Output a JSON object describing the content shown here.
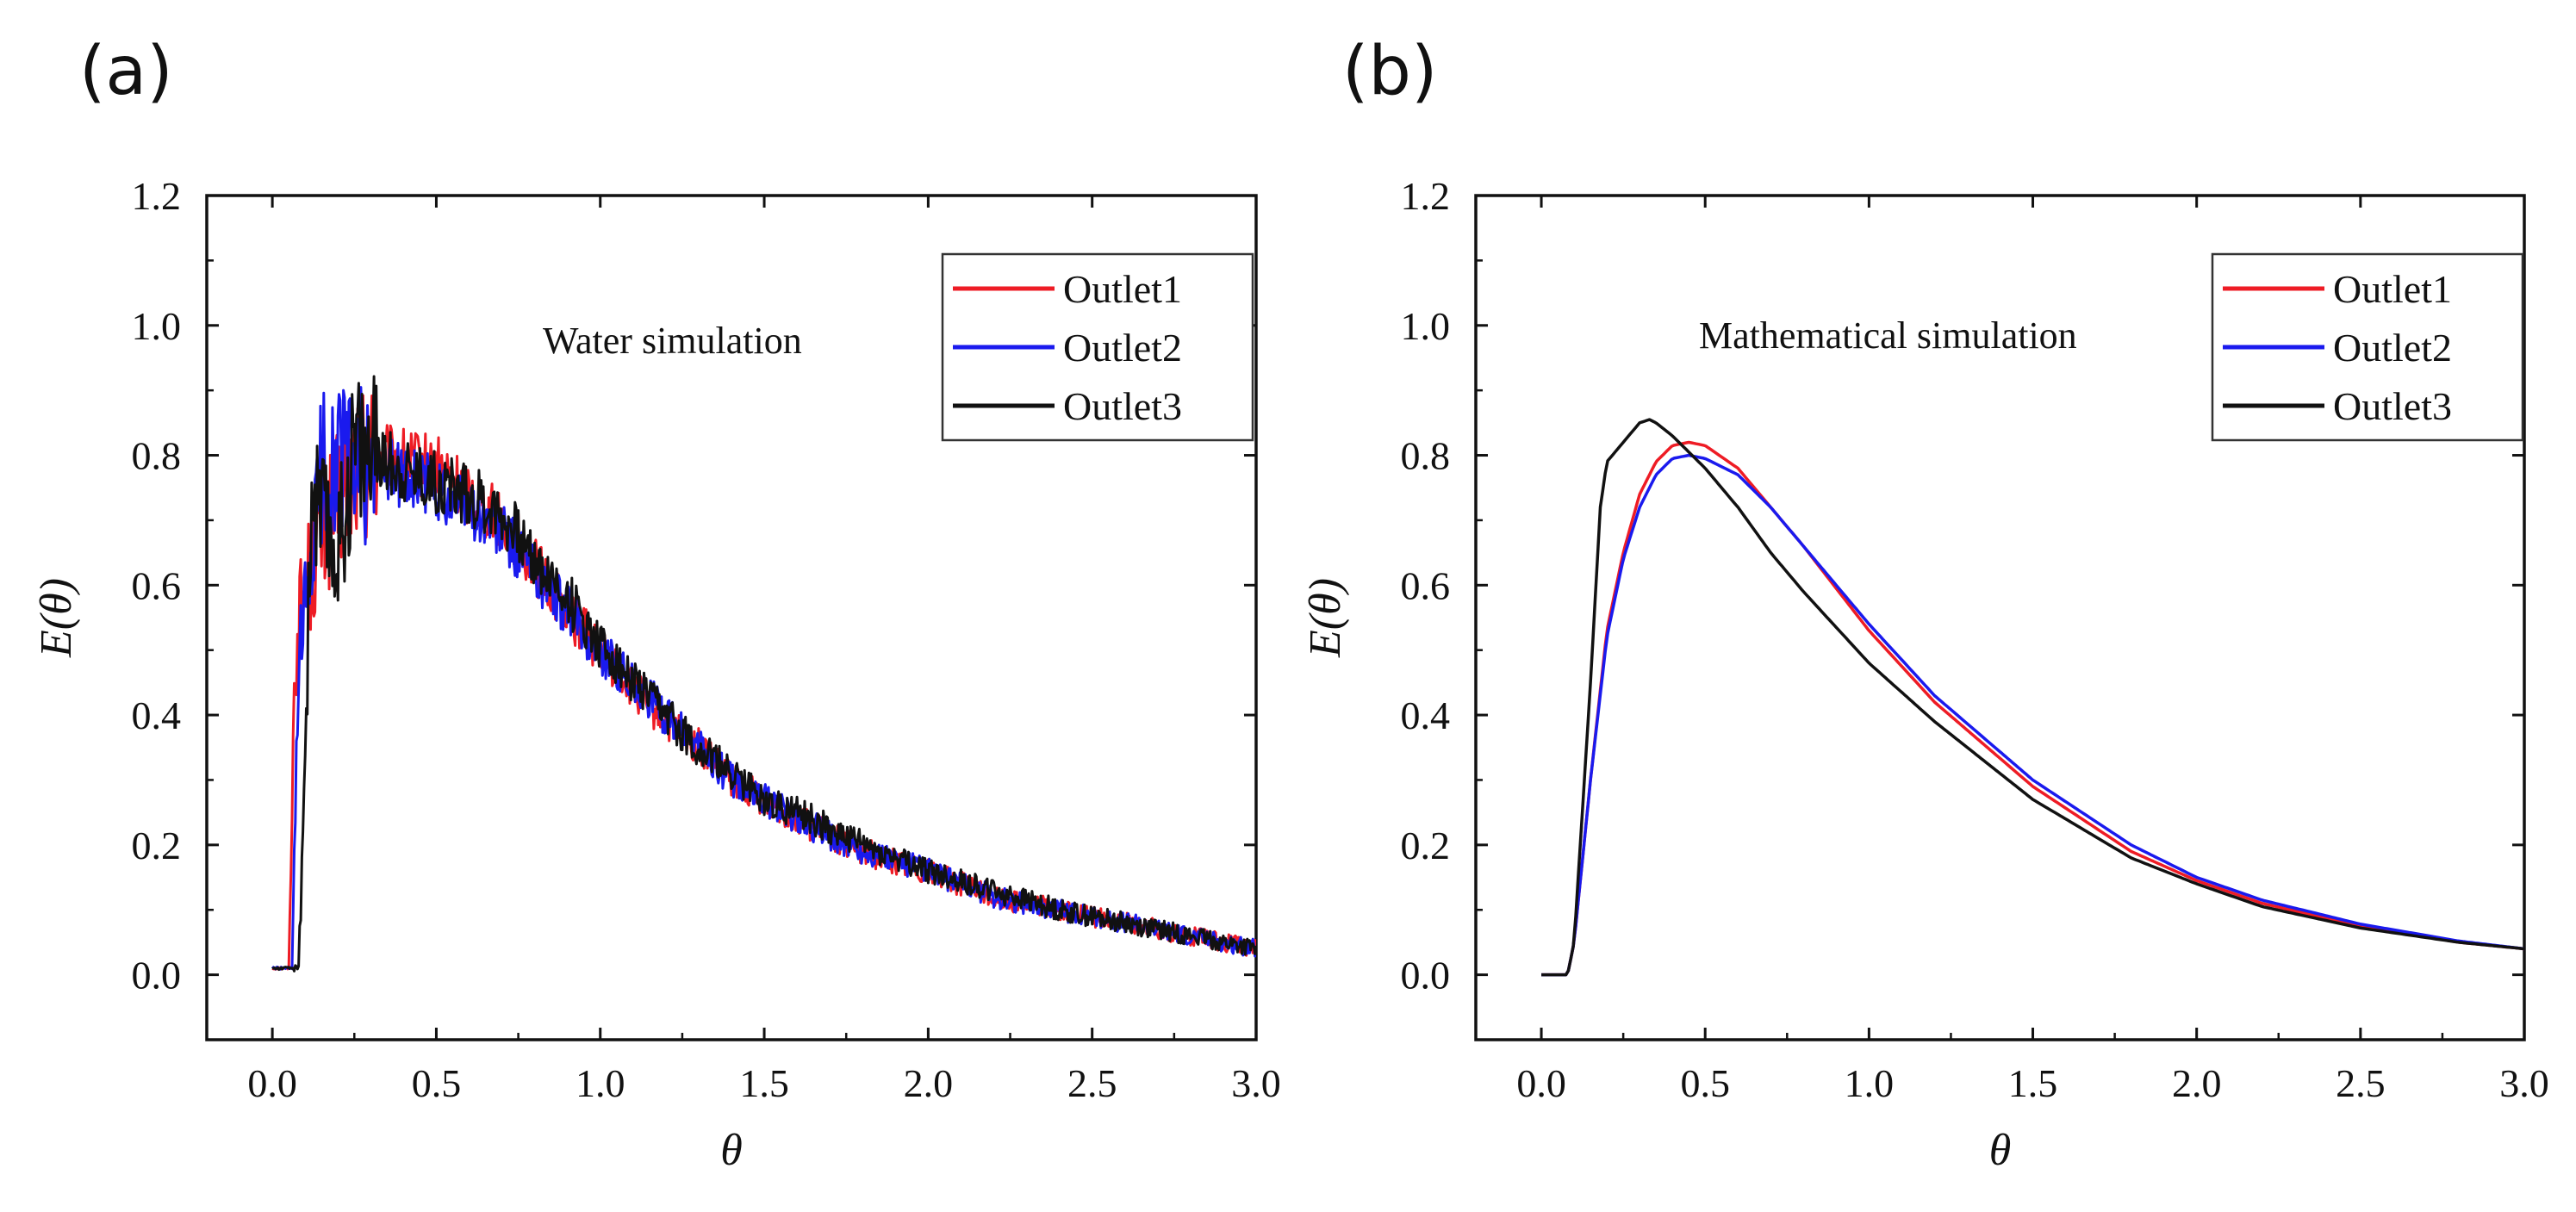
{
  "panel_labels": [
    "(a)",
    "(b)"
  ],
  "colors": {
    "Outlet1": "#ee1c25",
    "Outlet2": "#1a1aee",
    "Outlet3": "#111111",
    "axes": "#111111"
  },
  "chart_data": [
    {
      "type": "line",
      "panel": "(a)",
      "annotation": "Water simulation",
      "xlabel": "θ",
      "ylabel": "E(θ)",
      "xlim": [
        -0.2,
        3.0
      ],
      "ylim": [
        -0.1,
        1.2
      ],
      "xticks": [
        "0.0",
        "0.5",
        "1.0",
        "1.5",
        "2.0",
        "2.5",
        "3.0"
      ],
      "yticks": [
        "0.0",
        "0.2",
        "0.4",
        "0.6",
        "0.8",
        "1.0",
        "1.2"
      ],
      "legend": {
        "position": "top-right",
        "entries": [
          "Outlet1",
          "Outlet2",
          "Outlet3"
        ]
      },
      "noisy": true,
      "series": [
        {
          "name": "Outlet1",
          "x": [
            0.0,
            0.05,
            0.07,
            0.1,
            0.15,
            0.2,
            0.25,
            0.3,
            0.4,
            0.5,
            0.6,
            0.7,
            0.8,
            0.9,
            1.0,
            1.1,
            1.2,
            1.3,
            1.4,
            1.5,
            1.6,
            1.8,
            2.0,
            2.2,
            2.4,
            2.6,
            2.8,
            3.0
          ],
          "y": [
            0.01,
            0.01,
            0.5,
            0.6,
            0.68,
            0.72,
            0.78,
            0.8,
            0.79,
            0.78,
            0.74,
            0.7,
            0.63,
            0.56,
            0.5,
            0.44,
            0.39,
            0.35,
            0.3,
            0.27,
            0.24,
            0.19,
            0.16,
            0.12,
            0.1,
            0.08,
            0.06,
            0.04
          ]
        },
        {
          "name": "Outlet2",
          "x": [
            0.0,
            0.06,
            0.08,
            0.1,
            0.15,
            0.2,
            0.25,
            0.3,
            0.4,
            0.5,
            0.6,
            0.7,
            0.8,
            0.9,
            1.0,
            1.1,
            1.2,
            1.3,
            1.4,
            1.5,
            1.6,
            1.8,
            2.0,
            2.2,
            2.4,
            2.6,
            2.8,
            3.0
          ],
          "y": [
            0.01,
            0.01,
            0.45,
            0.55,
            0.78,
            0.8,
            0.79,
            0.78,
            0.77,
            0.75,
            0.72,
            0.68,
            0.62,
            0.56,
            0.5,
            0.45,
            0.4,
            0.35,
            0.3,
            0.27,
            0.24,
            0.19,
            0.16,
            0.12,
            0.1,
            0.08,
            0.06,
            0.04
          ]
        },
        {
          "name": "Outlet3",
          "x": [
            0.0,
            0.08,
            0.1,
            0.12,
            0.15,
            0.2,
            0.25,
            0.3,
            0.4,
            0.5,
            0.6,
            0.7,
            0.8,
            0.9,
            1.0,
            1.1,
            1.2,
            1.3,
            1.4,
            1.5,
            1.6,
            1.8,
            2.0,
            2.2,
            2.4,
            2.6,
            2.8,
            3.0
          ],
          "y": [
            0.01,
            0.01,
            0.35,
            0.75,
            0.7,
            0.65,
            0.82,
            0.8,
            0.78,
            0.76,
            0.74,
            0.71,
            0.64,
            0.58,
            0.51,
            0.45,
            0.4,
            0.35,
            0.31,
            0.27,
            0.25,
            0.2,
            0.16,
            0.13,
            0.1,
            0.08,
            0.06,
            0.04
          ]
        }
      ]
    },
    {
      "type": "line",
      "panel": "(b)",
      "annotation": "Mathematical  simulation",
      "xlabel": "θ",
      "ylabel": "E(θ)",
      "xlim": [
        -0.2,
        3.0
      ],
      "ylim": [
        -0.1,
        1.2
      ],
      "xticks": [
        "0.0",
        "0.5",
        "1.0",
        "1.5",
        "2.0",
        "2.5",
        "3.0"
      ],
      "yticks": [
        "0.0",
        "0.2",
        "0.4",
        "0.6",
        "0.8",
        "1.0",
        "1.2"
      ],
      "legend": {
        "position": "top-right",
        "entries": [
          "Outlet1",
          "Outlet2",
          "Outlet3"
        ]
      },
      "noisy": false,
      "series": [
        {
          "name": "Outlet1",
          "x": [
            0.0,
            0.08,
            0.1,
            0.15,
            0.2,
            0.25,
            0.3,
            0.35,
            0.4,
            0.45,
            0.5,
            0.6,
            0.7,
            0.8,
            1.0,
            1.2,
            1.5,
            1.8,
            2.0,
            2.2,
            2.5,
            2.8,
            3.0
          ],
          "y": [
            0.0,
            0.0,
            0.05,
            0.3,
            0.53,
            0.65,
            0.74,
            0.79,
            0.815,
            0.82,
            0.815,
            0.78,
            0.72,
            0.66,
            0.53,
            0.42,
            0.29,
            0.19,
            0.145,
            0.11,
            0.075,
            0.05,
            0.04
          ]
        },
        {
          "name": "Outlet2",
          "x": [
            0.0,
            0.08,
            0.1,
            0.15,
            0.2,
            0.25,
            0.3,
            0.35,
            0.4,
            0.45,
            0.5,
            0.6,
            0.7,
            0.8,
            1.0,
            1.2,
            1.5,
            1.8,
            2.0,
            2.2,
            2.5,
            2.8,
            3.0
          ],
          "y": [
            0.0,
            0.0,
            0.05,
            0.3,
            0.52,
            0.64,
            0.72,
            0.77,
            0.795,
            0.8,
            0.795,
            0.77,
            0.72,
            0.66,
            0.54,
            0.43,
            0.3,
            0.2,
            0.15,
            0.115,
            0.078,
            0.052,
            0.04
          ]
        },
        {
          "name": "Outlet3",
          "x": [
            0.0,
            0.08,
            0.1,
            0.15,
            0.18,
            0.2,
            0.25,
            0.3,
            0.33,
            0.35,
            0.4,
            0.5,
            0.6,
            0.7,
            0.8,
            1.0,
            1.2,
            1.5,
            1.8,
            2.0,
            2.2,
            2.5,
            2.8,
            3.0
          ],
          "y": [
            0.0,
            0.0,
            0.05,
            0.45,
            0.72,
            0.79,
            0.82,
            0.85,
            0.855,
            0.85,
            0.83,
            0.78,
            0.72,
            0.65,
            0.59,
            0.48,
            0.39,
            0.27,
            0.18,
            0.14,
            0.105,
            0.072,
            0.05,
            0.04
          ]
        }
      ]
    }
  ]
}
